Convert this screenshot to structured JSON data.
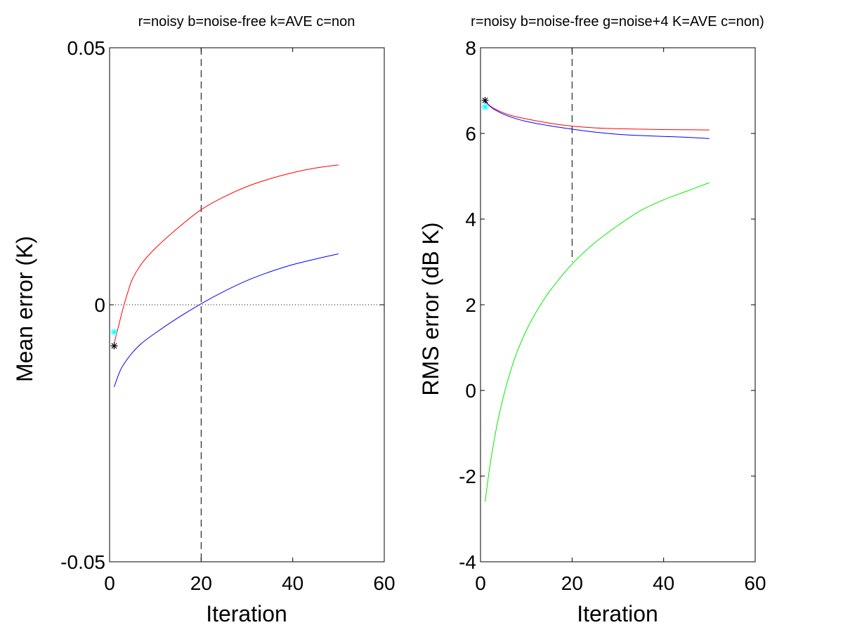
{
  "chart_data": [
    {
      "type": "line",
      "title": "r=noisy b=noise-free k=AVE c=non",
      "xlabel": "Iteration",
      "ylabel": "Mean error (K)",
      "xlim": [
        0,
        60
      ],
      "ylim": [
        -0.05,
        0.05
      ],
      "x_ticks": [
        0,
        20,
        40,
        60
      ],
      "y_ticks": [
        -0.05,
        0,
        0.05
      ],
      "x_tick_labels": [
        "0",
        "20",
        "40",
        "60"
      ],
      "y_tick_labels": [
        "-0.05",
        "0",
        "0.05"
      ],
      "grid": false,
      "zero_line": {
        "y": 0,
        "style": "dotted"
      },
      "vline": {
        "x": 20,
        "style": "dashed",
        "y_range": [
          -0.05,
          0.05
        ]
      },
      "series": [
        {
          "color": "#ff0000",
          "x": [
            1,
            2,
            3,
            4,
            5,
            7,
            10,
            15,
            20,
            25,
            30,
            35,
            40,
            45,
            50
          ],
          "y": [
            -0.0075,
            -0.004,
            -0.0005,
            0.0025,
            0.005,
            0.008,
            0.011,
            0.015,
            0.0185,
            0.021,
            0.023,
            0.0245,
            0.0257,
            0.0266,
            0.0272
          ]
        },
        {
          "color": "#0000ff",
          "x": [
            1,
            2,
            3,
            5,
            7,
            10,
            15,
            20,
            25,
            30,
            35,
            40,
            45,
            50
          ],
          "y": [
            -0.016,
            -0.0135,
            -0.0117,
            -0.0093,
            -0.0075,
            -0.0055,
            -0.0025,
            0.0002,
            0.0026,
            0.0047,
            0.0064,
            0.0078,
            0.0089,
            0.0099
          ]
        }
      ],
      "markers": [
        {
          "color": "#00ffff",
          "symbol": "*",
          "x": 1,
          "y": -0.0053
        },
        {
          "color": "#000000",
          "symbol": "*",
          "x": 1,
          "y": -0.008
        }
      ]
    },
    {
      "type": "line",
      "title": "r=noisy b=noise-free g=noise+4 K=AVE c=non)",
      "xlabel": "Iteration",
      "ylabel": "RMS error (dB K)",
      "xlim": [
        0,
        60
      ],
      "ylim": [
        -4,
        8
      ],
      "x_ticks": [
        0,
        20,
        40,
        60
      ],
      "y_ticks": [
        -4,
        -2,
        0,
        2,
        4,
        6,
        8
      ],
      "x_tick_labels": [
        "0",
        "20",
        "40",
        "60"
      ],
      "y_tick_labels": [
        "-4",
        "-2",
        "0",
        "2",
        "4",
        "6",
        "8"
      ],
      "grid": false,
      "vline": {
        "x": 20,
        "style": "dashed",
        "y_range": [
          3.0,
          8
        ]
      },
      "series": [
        {
          "color": "#ff0000",
          "x": [
            1,
            2,
            3,
            5,
            7,
            10,
            15,
            20,
            25,
            30,
            35,
            40,
            45,
            50
          ],
          "y": [
            6.75,
            6.65,
            6.58,
            6.48,
            6.41,
            6.34,
            6.24,
            6.17,
            6.13,
            6.11,
            6.1,
            6.09,
            6.085,
            6.08
          ]
        },
        {
          "color": "#0000ff",
          "x": [
            1,
            2,
            3,
            5,
            7,
            10,
            15,
            20,
            25,
            30,
            35,
            40,
            45,
            50
          ],
          "y": [
            6.75,
            6.64,
            6.56,
            6.45,
            6.37,
            6.28,
            6.18,
            6.1,
            6.03,
            5.98,
            5.95,
            5.93,
            5.91,
            5.88
          ]
        },
        {
          "color": "#00ee00",
          "x": [
            1,
            2,
            3,
            4,
            5,
            6,
            7,
            8,
            10,
            12,
            15,
            20,
            25,
            30,
            35,
            40,
            45,
            50
          ],
          "y": [
            -2.6,
            -1.8,
            -1.15,
            -0.6,
            -0.15,
            0.25,
            0.6,
            0.9,
            1.4,
            1.8,
            2.3,
            2.95,
            3.45,
            3.85,
            4.2,
            4.45,
            4.65,
            4.85
          ]
        }
      ],
      "markers": [
        {
          "color": "#000000",
          "symbol": "*",
          "x": 1,
          "y": 6.77
        },
        {
          "color": "#00ffff",
          "symbol": "*",
          "x": 1,
          "y": 6.62
        }
      ]
    }
  ]
}
